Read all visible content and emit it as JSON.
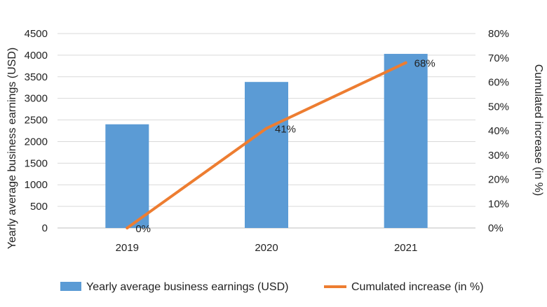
{
  "chart_data": {
    "type": "bar",
    "categories": [
      "2019",
      "2020",
      "2021"
    ],
    "series": [
      {
        "name": "Yearly average business earnings (USD)",
        "kind": "bar",
        "axis": "left",
        "color": "#5B9BD5",
        "values": [
          2400,
          3380,
          4030
        ]
      },
      {
        "name": "Cumulated increase (in %)",
        "kind": "line",
        "axis": "right",
        "color": "#ED7D31",
        "values": [
          0,
          41,
          68
        ],
        "labels": [
          "0%",
          "41%",
          "68%"
        ]
      }
    ],
    "ylabel": "Yearly average business earnings (USD)",
    "y2label": "Cumulated increase (in %)",
    "ylim": [
      0,
      4500
    ],
    "y2lim": [
      0,
      80
    ],
    "yticks": [
      "0",
      "500",
      "1000",
      "1500",
      "2000",
      "2500",
      "3000",
      "3500",
      "4000",
      "4500"
    ],
    "y2ticks": [
      "0%",
      "10%",
      "20%",
      "30%",
      "40%",
      "50%",
      "60%",
      "70%",
      "80%"
    ],
    "grid": true,
    "legend": "bottom"
  }
}
